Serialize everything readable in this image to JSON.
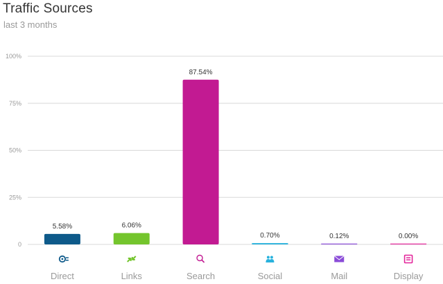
{
  "header": {
    "title": "Traffic Sources",
    "subtitle": "last 3 months"
  },
  "chart_data": {
    "type": "bar",
    "title": "Traffic Sources",
    "subtitle": "last 3 months",
    "xlabel": "",
    "ylabel": "",
    "ylim": [
      0,
      100
    ],
    "yticks": [
      0,
      25,
      50,
      75,
      100
    ],
    "ytick_labels": [
      "0",
      "25%",
      "50%",
      "75%",
      "100%"
    ],
    "grid": true,
    "legend": "none",
    "categories": [
      "Direct",
      "Links",
      "Search",
      "Social",
      "Mail",
      "Display"
    ],
    "values": [
      5.58,
      6.06,
      87.54,
      0.7,
      0.12,
      0.0
    ],
    "data_labels": [
      "5.58%",
      "6.06%",
      "87.54%",
      "0.70%",
      "0.12%",
      "0.00%"
    ],
    "colors": [
      "#0e5a8a",
      "#74c52d",
      "#c21a92",
      "#29b2dd",
      "#8a4bd8",
      "#e3249a"
    ],
    "icons": [
      "direct-icon",
      "links-icon",
      "search-icon",
      "social-icon",
      "mail-icon",
      "display-icon"
    ]
  }
}
